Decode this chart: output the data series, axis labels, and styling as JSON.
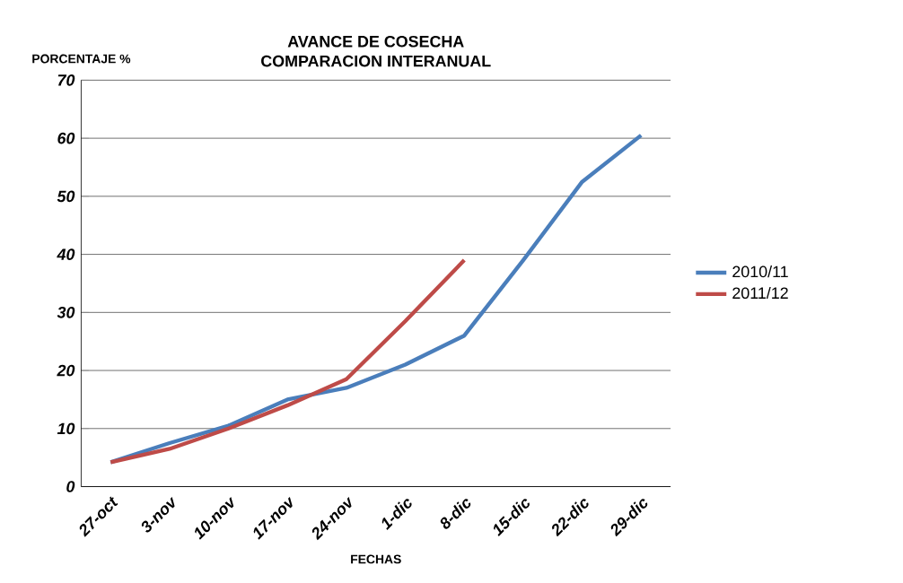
{
  "chart_data": {
    "type": "line",
    "title": "AVANCE DE COSECHA\nCOMPARACION INTERANUAL",
    "xlabel": "FECHAS",
    "ylabel": "PORCENTAJE %",
    "categories": [
      "27-oct",
      "3-nov",
      "10-nov",
      "17-nov",
      "24-nov",
      "1-dic",
      "8-dic",
      "15-dic",
      "22-dic",
      "29-dic"
    ],
    "series": [
      {
        "name": "2010/11",
        "color": "#4a7ebb",
        "values": [
          4.2,
          7.5,
          10.5,
          15,
          17,
          21,
          26,
          39,
          52.5,
          60.5
        ]
      },
      {
        "name": "2011/12",
        "color": "#be4b48",
        "values": [
          4.2,
          6.5,
          10,
          14,
          18.5,
          28.5,
          39,
          null,
          null,
          null
        ]
      }
    ],
    "ylim": [
      0,
      70
    ],
    "yticks": [
      0,
      10,
      20,
      30,
      40,
      50,
      60,
      70
    ],
    "grid": "y",
    "legend": "right",
    "marker": "none",
    "line_style": "solid"
  }
}
